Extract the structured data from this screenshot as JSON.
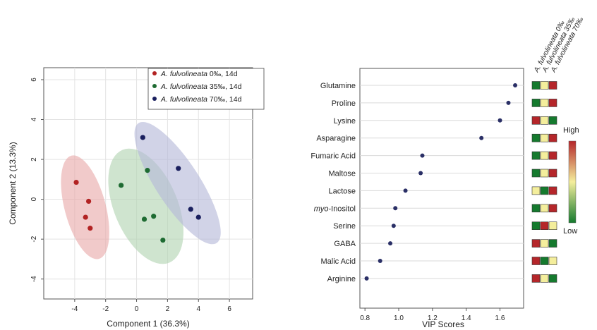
{
  "chart_data": [
    {
      "type": "scatter",
      "xlabel": "Component 1 (36.3%)",
      "ylabel": "Component 2 (13.3%)",
      "xlim": [
        -6,
        7.5
      ],
      "ylim": [
        -5,
        6.6
      ],
      "xticks": [
        -4,
        -2,
        0,
        2,
        4,
        6
      ],
      "yticks": [
        -4,
        -2,
        0,
        2,
        4,
        6
      ],
      "grid": true,
      "legend_position": "top-right",
      "series": [
        {
          "name_prefix": "A. fulvolineata",
          "name_suffix": "0‰, 14d",
          "color": "#b22222",
          "ellipse_color": "#e8a9a9",
          "points": [
            [
              -3.9,
              0.85
            ],
            [
              -3.1,
              -0.1
            ],
            [
              -3.3,
              -0.9
            ],
            [
              -3.0,
              -1.45
            ]
          ]
        },
        {
          "name_prefix": "A. fulvolineata",
          "name_suffix": "35‰, 14d",
          "color": "#1e6b32",
          "ellipse_color": "#b2d3b2",
          "points": [
            [
              -1.0,
              0.7
            ],
            [
              0.7,
              1.45
            ],
            [
              1.1,
              -0.85
            ],
            [
              0.5,
              -1.0
            ],
            [
              1.7,
              -2.05
            ]
          ]
        },
        {
          "name_prefix": "A. fulvolineata",
          "name_suffix": "70‰, 14d",
          "color": "#1a1f5e",
          "ellipse_color": "#b4b8d8",
          "points": [
            [
              0.4,
              3.1
            ],
            [
              2.7,
              1.55
            ],
            [
              3.5,
              -0.5
            ],
            [
              4.0,
              -0.9
            ]
          ]
        }
      ]
    },
    {
      "type": "scatter",
      "xlabel": "VIP Scores",
      "xlim": [
        0.77,
        1.74
      ],
      "xticks": [
        "0.8",
        "1.0",
        "1.2",
        "1.4",
        "1.6"
      ],
      "categories": [
        "Glutamine",
        "Proline",
        "Lysine",
        "Asparagine",
        "Fumaric Acid",
        "Maltose",
        "Lactose",
        "myo-Inositol",
        "Serine",
        "GABA",
        "Malic Acid",
        "Arginine"
      ],
      "values": [
        1.69,
        1.65,
        1.6,
        1.49,
        1.14,
        1.13,
        1.04,
        0.98,
        0.97,
        0.95,
        0.89,
        0.81
      ],
      "heatmap_columns": [
        "A. fulvolineata 0‰",
        "A. fulvolineata 35‰",
        "A. fulvolineata 70‰"
      ],
      "heatmap": [
        [
          "#157a2e",
          "#f4ee9c",
          "#b5262a"
        ],
        [
          "#157a2e",
          "#f4ee9c",
          "#b5262a"
        ],
        [
          "#b5262a",
          "#f4ee9c",
          "#157a2e"
        ],
        [
          "#157a2e",
          "#f4ee9c",
          "#b5262a"
        ],
        [
          "#157a2e",
          "#f4ee9c",
          "#b5262a"
        ],
        [
          "#157a2e",
          "#f4ee9c",
          "#b5262a"
        ],
        [
          "#f4ee9c",
          "#157a2e",
          "#b5262a"
        ],
        [
          "#157a2e",
          "#f4ee9c",
          "#b5262a"
        ],
        [
          "#157a2e",
          "#b5262a",
          "#f4ee9c"
        ],
        [
          "#b5262a",
          "#f4ee9c",
          "#157a2e"
        ],
        [
          "#b5262a",
          "#157a2e",
          "#f4ee9c"
        ],
        [
          "#b5262a",
          "#f4ee9c",
          "#157a2e"
        ]
      ],
      "colorbar": {
        "high_label": "High",
        "low_label": "Low",
        "colors": [
          "#b5262a",
          "#f4ee9c",
          "#157a2e"
        ]
      }
    }
  ]
}
